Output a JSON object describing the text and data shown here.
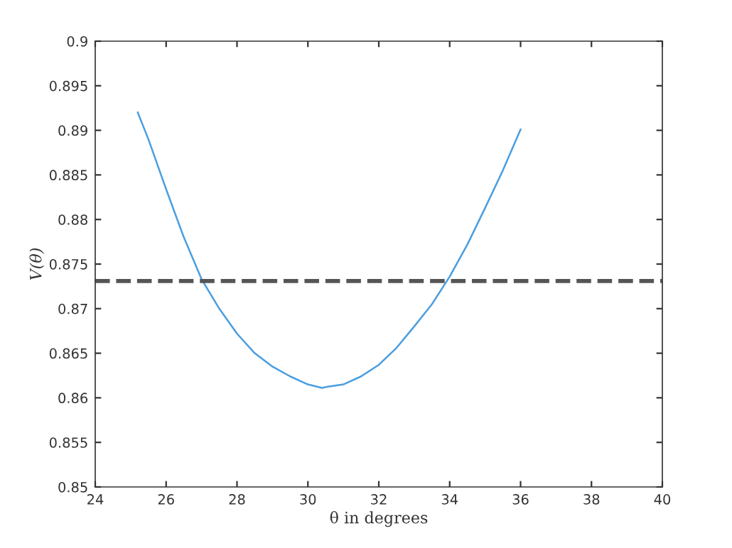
{
  "chart_data": {
    "type": "line",
    "xlabel": "θ in degrees",
    "ylabel": "V(θ)",
    "x": [
      25.2,
      25.5,
      26,
      26.5,
      27,
      27.5,
      28,
      28.5,
      29,
      29.5,
      30,
      30.4,
      30.5,
      31,
      31.5,
      32,
      32.5,
      33,
      33.5,
      34,
      34.5,
      35,
      35.5,
      36
    ],
    "series": [
      {
        "color": "#4a9ee0",
        "values": [
          0.892,
          0.889,
          0.8834,
          0.878,
          0.8733,
          0.87,
          0.8672,
          0.865,
          0.8635,
          0.8624,
          0.8615,
          0.8611,
          0.8612,
          0.8615,
          0.8624,
          0.8637,
          0.8656,
          0.868,
          0.8705,
          0.8736,
          0.8772,
          0.8813,
          0.8855,
          0.8901
        ]
      }
    ],
    "xlim": [
      24,
      40
    ],
    "xticks": [
      24,
      26,
      28,
      30,
      32,
      34,
      36,
      38,
      40
    ],
    "ylim": [
      0.85,
      0.9
    ],
    "yticks": [
      0.85,
      0.855,
      0.86,
      0.865,
      0.87,
      0.875,
      0.88,
      0.885,
      0.89,
      0.895,
      0.9
    ],
    "ref_lines": [
      {
        "axis": "y",
        "value": 0.8731,
        "color": "#555555",
        "line_style": "dashed"
      }
    ],
    "grid": false,
    "legend": false,
    "marker": "none",
    "line_style": "solid"
  }
}
